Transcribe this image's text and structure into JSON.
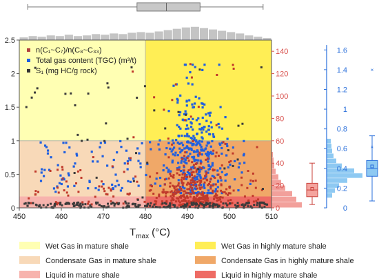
{
  "chart_data": {
    "type": "scatter",
    "xlabel": "T",
    "xlabel_sub": "max",
    "xlabel_unit": "(°C)",
    "xlim": [
      450,
      510
    ],
    "x_ticks": [
      "450",
      "460",
      "470",
      "480",
      "490",
      "500",
      "510"
    ],
    "left_axis": {
      "ylim": [
        0,
        2.5
      ],
      "ticks": [
        "0",
        "0.5",
        "1",
        "1.5",
        "2",
        "2.5"
      ],
      "color": "#333333"
    },
    "red_axis": {
      "ylim": [
        0,
        150
      ],
      "ticks": [
        "0",
        "20",
        "40",
        "60",
        "80",
        "100",
        "120",
        "140"
      ],
      "color": "#d9534f"
    },
    "blue_axis": {
      "ylim": [
        0,
        1.7
      ],
      "ticks": [
        "0",
        "0.2",
        "0.4",
        "0.6",
        "0.8",
        "1",
        "1.2",
        "1.4",
        "1.6"
      ],
      "color": "#2a6fdb"
    },
    "series": [
      {
        "name": "n(C₁~C₇)/n(C₈~C₃₃)",
        "color": "#b0413e",
        "axis": "red"
      },
      {
        "name": "Total gas content (TGC) (m³/t)",
        "color": "#1f5fe0",
        "axis": "blue"
      },
      {
        "name": "S₁ (mg HC/g rock)",
        "color": "#333333",
        "axis": "left"
      }
    ],
    "regions": [
      {
        "label": "Wet Gas in mature shale",
        "color": "#ffffb3",
        "x": [
          450,
          480
        ],
        "y": [
          1,
          2.5
        ]
      },
      {
        "label": "Wet Gas in highly mature shale",
        "color": "#ffee55",
        "x": [
          480,
          510
        ],
        "y": [
          1,
          2.5
        ]
      },
      {
        "label": "Condensate Gas in mature shale",
        "color": "#f8d9b8",
        "x": [
          450,
          480
        ],
        "y": [
          0.17,
          1
        ]
      },
      {
        "label": "Condensate Gas in highly mature shale",
        "color": "#f0a868",
        "x": [
          480,
          510
        ],
        "y": [
          0.17,
          1
        ]
      },
      {
        "label": "Liquid in mature shale",
        "color": "#f7b3ad",
        "x": [
          450,
          480
        ],
        "y": [
          0,
          0.17
        ]
      },
      {
        "label": "Liquid in highly mature shale",
        "color": "#ee6b64",
        "x": [
          480,
          510
        ],
        "y": [
          0,
          0.17
        ]
      }
    ],
    "top_boxplot": {
      "whisker": [
        452,
        508
      ],
      "box": [
        478,
        493
      ],
      "median": 485,
      "mean": 486
    },
    "red_boxplot": {
      "whisker": [
        3,
        40
      ],
      "box": [
        10,
        22
      ],
      "median": 16,
      "mean": 17
    },
    "blue_boxplot": {
      "whisker": [
        0.07,
        0.73
      ],
      "box": [
        0.32,
        0.48
      ],
      "median": 0.4,
      "mean": 0.42,
      "outliers": [
        1.4,
        0.62
      ]
    }
  }
}
